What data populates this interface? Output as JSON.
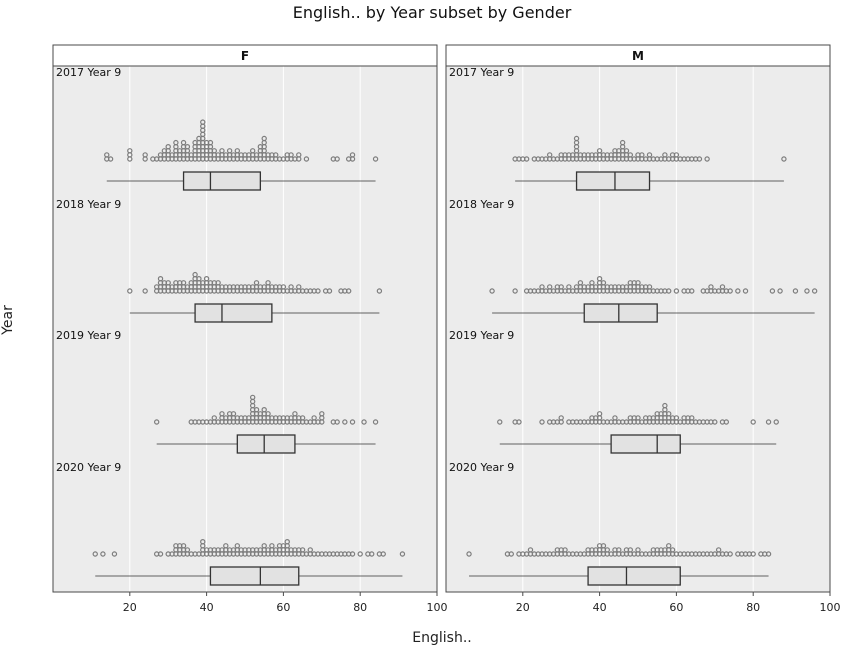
{
  "chart_data": {
    "type": "dotplot-boxplot",
    "title": "English.. by Year subset by Gender",
    "xlabel": "English..",
    "ylabel": "Year",
    "xlim": [
      0,
      100
    ],
    "xticks": [
      20,
      40,
      60,
      80,
      100
    ],
    "grid": true,
    "panels": [
      {
        "name": "F",
        "rows": [
          {
            "label": "2017 Year 9",
            "box": {
              "min": 14,
              "q1": 34,
              "median": 41,
              "q3": 54,
              "max": 84
            },
            "points": [
              14,
              14,
              15,
              20,
              20,
              20,
              24,
              24,
              26,
              27,
              28,
              28,
              29,
              29,
              29,
              30,
              30,
              30,
              30,
              31,
              31,
              32,
              32,
              32,
              32,
              32,
              33,
              33,
              33,
              34,
              34,
              34,
              34,
              34,
              35,
              35,
              35,
              35,
              36,
              36,
              37,
              37,
              37,
              37,
              37,
              38,
              38,
              38,
              38,
              38,
              38,
              39,
              39,
              39,
              39,
              39,
              39,
              39,
              39,
              39,
              39,
              40,
              40,
              40,
              40,
              40,
              41,
              41,
              41,
              41,
              41,
              42,
              42,
              42,
              43,
              43,
              44,
              44,
              44,
              45,
              45,
              46,
              46,
              46,
              47,
              47,
              48,
              48,
              48,
              49,
              49,
              50,
              50,
              51,
              51,
              52,
              52,
              52,
              53,
              53,
              54,
              54,
              54,
              54,
              55,
              55,
              55,
              55,
              55,
              55,
              56,
              56,
              57,
              57,
              58,
              58,
              59,
              60,
              61,
              61,
              62,
              62,
              63,
              64,
              64,
              66,
              73,
              74,
              77,
              78,
              78,
              84
            ]
          },
          {
            "label": "2018 Year 9",
            "box": {
              "min": 20,
              "q1": 37,
              "median": 44,
              "q3": 57,
              "max": 85
            },
            "points": [
              20,
              24,
              27,
              27,
              28,
              28,
              28,
              28,
              29,
              29,
              29,
              30,
              30,
              30,
              31,
              31,
              32,
              32,
              32,
              33,
              33,
              33,
              34,
              34,
              34,
              35,
              35,
              36,
              36,
              36,
              37,
              37,
              37,
              37,
              37,
              38,
              38,
              38,
              38,
              39,
              39,
              39,
              40,
              40,
              40,
              40,
              41,
              41,
              41,
              42,
              42,
              42,
              43,
              43,
              43,
              44,
              44,
              45,
              45,
              46,
              46,
              47,
              47,
              48,
              48,
              49,
              49,
              50,
              50,
              51,
              51,
              52,
              52,
              53,
              53,
              53,
              54,
              54,
              55,
              55,
              56,
              56,
              56,
              57,
              57,
              58,
              58,
              59,
              59,
              60,
              60,
              61,
              62,
              62,
              63,
              64,
              64,
              65,
              66,
              67,
              68,
              69,
              71,
              72,
              75,
              76,
              77,
              85
            ]
          },
          {
            "label": "2019 Year 9",
            "box": {
              "min": 27,
              "q1": 48,
              "median": 55,
              "q3": 63,
              "max": 84
            },
            "points": [
              27,
              36,
              37,
              38,
              39,
              40,
              41,
              42,
              42,
              43,
              44,
              44,
              44,
              45,
              45,
              46,
              46,
              46,
              47,
              47,
              47,
              48,
              48,
              49,
              49,
              50,
              50,
              51,
              51,
              52,
              52,
              52,
              52,
              52,
              52,
              52,
              53,
              53,
              53,
              53,
              54,
              54,
              54,
              55,
              55,
              55,
              55,
              56,
              56,
              56,
              57,
              57,
              58,
              58,
              59,
              59,
              60,
              60,
              61,
              61,
              62,
              62,
              63,
              63,
              63,
              64,
              64,
              65,
              65,
              66,
              67,
              68,
              68,
              69,
              70,
              70,
              70,
              73,
              74,
              76,
              78,
              81,
              84
            ]
          },
          {
            "label": "2020 Year 9",
            "box": {
              "min": 11,
              "q1": 41,
              "median": 54,
              "q3": 64,
              "max": 91
            },
            "points": [
              11,
              13,
              16,
              27,
              28,
              30,
              31,
              32,
              32,
              32,
              33,
              33,
              33,
              34,
              34,
              34,
              35,
              35,
              36,
              37,
              38,
              39,
              39,
              39,
              39,
              40,
              40,
              41,
              41,
              42,
              42,
              43,
              43,
              44,
              44,
              45,
              45,
              45,
              46,
              46,
              47,
              47,
              48,
              48,
              48,
              49,
              49,
              50,
              50,
              51,
              51,
              52,
              52,
              53,
              53,
              54,
              54,
              55,
              55,
              55,
              56,
              56,
              57,
              57,
              57,
              58,
              58,
              59,
              59,
              59,
              60,
              60,
              60,
              61,
              61,
              61,
              61,
              62,
              62,
              63,
              63,
              64,
              64,
              65,
              65,
              66,
              67,
              67,
              68,
              69,
              70,
              71,
              72,
              73,
              74,
              75,
              76,
              77,
              78,
              80,
              82,
              83,
              85,
              86,
              91
            ]
          }
        ]
      },
      {
        "name": "M",
        "rows": [
          {
            "label": "2017 Year 9",
            "box": {
              "min": 18,
              "q1": 34,
              "median": 44,
              "q3": 53,
              "max": 88
            },
            "points": [
              18,
              19,
              20,
              21,
              23,
              24,
              25,
              26,
              27,
              27,
              28,
              29,
              30,
              30,
              31,
              31,
              32,
              32,
              33,
              33,
              34,
              34,
              34,
              34,
              34,
              34,
              35,
              35,
              36,
              36,
              37,
              37,
              38,
              38,
              39,
              39,
              40,
              40,
              40,
              41,
              41,
              42,
              42,
              43,
              43,
              44,
              44,
              44,
              45,
              45,
              45,
              46,
              46,
              46,
              46,
              46,
              47,
              47,
              47,
              48,
              48,
              49,
              50,
              50,
              51,
              51,
              52,
              53,
              53,
              54,
              55,
              56,
              57,
              57,
              58,
              59,
              59,
              60,
              60,
              61,
              62,
              63,
              64,
              65,
              66,
              68,
              88
            ]
          },
          {
            "label": "2018 Year 9",
            "box": {
              "min": 12,
              "q1": 36,
              "median": 45,
              "q3": 55,
              "max": 96
            },
            "points": [
              12,
              18,
              21,
              22,
              23,
              24,
              25,
              25,
              26,
              27,
              27,
              28,
              29,
              29,
              30,
              30,
              31,
              32,
              32,
              33,
              34,
              34,
              35,
              35,
              35,
              36,
              36,
              37,
              37,
              38,
              38,
              38,
              39,
              39,
              40,
              40,
              40,
              40,
              41,
              41,
              41,
              42,
              42,
              43,
              43,
              44,
              44,
              45,
              45,
              46,
              46,
              47,
              47,
              48,
              48,
              48,
              49,
              49,
              49,
              50,
              50,
              50,
              51,
              51,
              52,
              52,
              53,
              53,
              54,
              55,
              56,
              57,
              58,
              60,
              62,
              63,
              64,
              67,
              68,
              69,
              69,
              70,
              71,
              72,
              72,
              73,
              74,
              76,
              78,
              85,
              87,
              91,
              94,
              96
            ]
          },
          {
            "label": "2019 Year 9",
            "box": {
              "min": 14,
              "q1": 43,
              "median": 55,
              "q3": 61,
              "max": 86
            },
            "points": [
              14,
              18,
              19,
              25,
              27,
              28,
              29,
              30,
              30,
              32,
              33,
              34,
              35,
              36,
              37,
              38,
              38,
              39,
              39,
              40,
              40,
              40,
              41,
              42,
              43,
              44,
              44,
              45,
              46,
              47,
              48,
              48,
              49,
              49,
              50,
              50,
              51,
              52,
              52,
              53,
              53,
              54,
              54,
              55,
              55,
              55,
              56,
              56,
              56,
              57,
              57,
              57,
              57,
              57,
              58,
              58,
              58,
              59,
              59,
              60,
              60,
              61,
              62,
              62,
              63,
              63,
              64,
              64,
              65,
              66,
              67,
              68,
              69,
              70,
              72,
              73,
              80,
              84,
              86
            ]
          },
          {
            "label": "2020 Year 9",
            "box": {
              "min": 6,
              "q1": 37,
              "median": 47,
              "q3": 61,
              "max": 84
            },
            "points": [
              6,
              16,
              17,
              19,
              20,
              21,
              22,
              22,
              23,
              24,
              25,
              26,
              27,
              28,
              29,
              29,
              30,
              30,
              31,
              31,
              32,
              33,
              34,
              35,
              36,
              37,
              37,
              38,
              38,
              39,
              39,
              40,
              40,
              40,
              41,
              41,
              41,
              42,
              42,
              43,
              44,
              44,
              45,
              45,
              46,
              47,
              47,
              48,
              48,
              49,
              50,
              50,
              51,
              52,
              53,
              54,
              54,
              55,
              55,
              56,
              56,
              57,
              57,
              58,
              58,
              58,
              59,
              59,
              60,
              61,
              62,
              63,
              64,
              65,
              66,
              67,
              68,
              69,
              70,
              71,
              71,
              72,
              73,
              74,
              76,
              77,
              78,
              79,
              80,
              82,
              83,
              84
            ]
          }
        ]
      }
    ]
  },
  "colors": {
    "panel_bg": "#ececec",
    "grid": "#ffffff",
    "strip_bg": "#ffffff",
    "border": "#4a4a4a",
    "point_stroke": "#7d7d7d",
    "box_fill": "#e2e2e2",
    "line": "#333333"
  }
}
